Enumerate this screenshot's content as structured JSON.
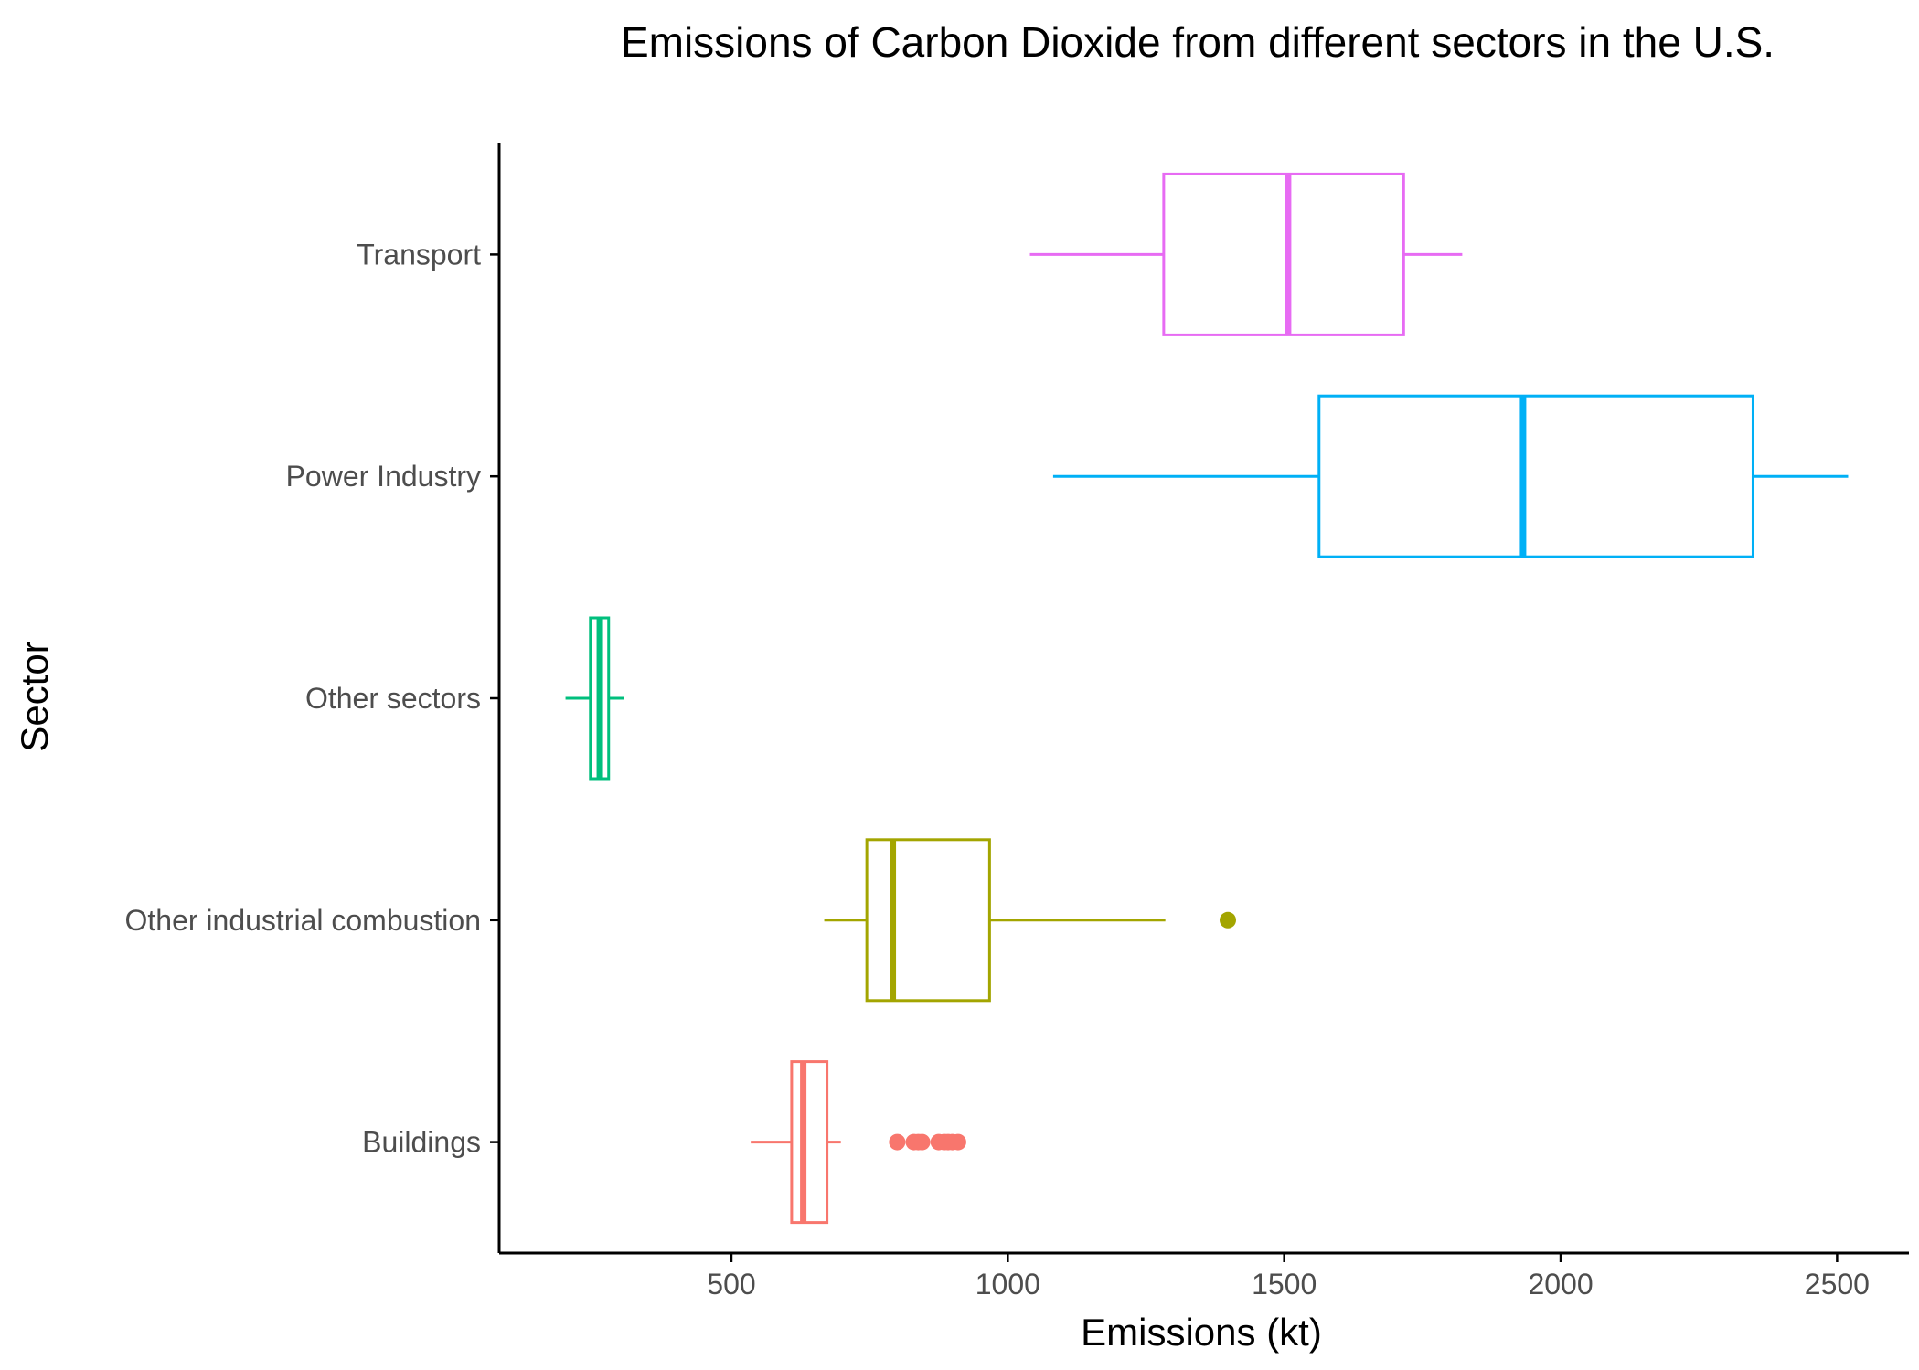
{
  "chart_data": {
    "type": "boxplot",
    "title": "Emissions of Carbon Dioxide from different sectors in the U.S.",
    "xlabel": "Emissions (kt)",
    "ylabel": "Sector",
    "xlim": [
      80,
      2630
    ],
    "xticks": [
      500,
      1000,
      1500,
      2000,
      2500
    ],
    "xtick_labels": [
      "500",
      "1000",
      "1500",
      "2000",
      "2500"
    ],
    "grid": false,
    "legend": "none",
    "categories": [
      "Buildings",
      "Other industrial combustion",
      "Other sectors",
      "Power Industry",
      "Transport"
    ],
    "series": [
      {
        "category": "Buildings",
        "color": "#F8766D",
        "whisker_low": 535,
        "q1": 609,
        "median": 630,
        "q3": 673,
        "whisker_high": 698,
        "outliers": [
          800,
          830,
          838,
          845,
          875,
          885,
          892,
          900,
          910
        ]
      },
      {
        "category": "Other industrial combustion",
        "color": "#A3A500",
        "whisker_low": 668,
        "q1": 745,
        "median": 792,
        "q3": 967,
        "whisker_high": 1285,
        "outliers": [
          1398
        ]
      },
      {
        "category": "Other sectors",
        "color": "#00BF7D",
        "whisker_low": 200,
        "q1": 245,
        "median": 262,
        "q3": 278,
        "whisker_high": 305,
        "outliers": []
      },
      {
        "category": "Power Industry",
        "color": "#00B0F6",
        "whisker_low": 1082,
        "q1": 1563,
        "median": 1932,
        "q3": 2348,
        "whisker_high": 2520,
        "outliers": []
      },
      {
        "category": "Transport",
        "color": "#E76BF3",
        "whisker_low": 1040,
        "q1": 1282,
        "median": 1507,
        "q3": 1716,
        "whisker_high": 1822,
        "outliers": []
      }
    ]
  }
}
